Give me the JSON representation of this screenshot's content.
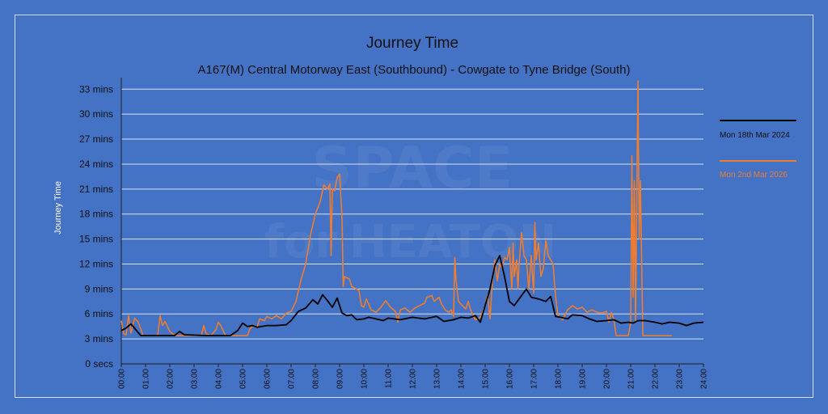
{
  "chart_data": {
    "type": "line",
    "title": "Journey Time",
    "subtitle": "A167(M) Central Motorway East (Southbound) - Cowgate to Tyne Bridge (South)",
    "ylabel": "Journey Time",
    "xlabel": "",
    "x_unit": "hours",
    "xlim": [
      0,
      24
    ],
    "ylim": [
      0,
      34
    ],
    "x_ticks": [
      "00:00",
      "01:00",
      "02:00",
      "03:00",
      "04:00",
      "05:00",
      "06:00",
      "07:00",
      "08:00",
      "09:00",
      "10:00",
      "11:00",
      "12:00",
      "13:00",
      "14:00",
      "15:00",
      "16:00",
      "17:00",
      "18:00",
      "19:00",
      "20:00",
      "21:00",
      "22:00",
      "23:00",
      "24:00"
    ],
    "y_ticks": [
      {
        "value": 0,
        "label": "0 secs"
      },
      {
        "value": 3,
        "label": "3 mins"
      },
      {
        "value": 6,
        "label": "6 mins"
      },
      {
        "value": 9,
        "label": "9 mins"
      },
      {
        "value": 12,
        "label": "12 mins"
      },
      {
        "value": 15,
        "label": "15 mins"
      },
      {
        "value": 18,
        "label": "18 mins"
      },
      {
        "value": 21,
        "label": "21 mins"
      },
      {
        "value": 24,
        "label": "24 mins"
      },
      {
        "value": 27,
        "label": "27 mins"
      },
      {
        "value": 30,
        "label": "30 mins"
      },
      {
        "value": 33,
        "label": "33 mins"
      }
    ],
    "grid": true,
    "legend_position": "right",
    "watermark": [
      "SPACE",
      "for",
      "HEATON"
    ],
    "series": [
      {
        "name": "Mon 18th Mar 2024",
        "color": "#000000",
        "points": [
          [
            0.0,
            4.0
          ],
          [
            0.2,
            4.3
          ],
          [
            0.4,
            4.8
          ],
          [
            0.6,
            4.1
          ],
          [
            0.8,
            3.4
          ],
          [
            1.5,
            3.4
          ],
          [
            2.2,
            3.4
          ],
          [
            2.4,
            3.9
          ],
          [
            2.6,
            3.5
          ],
          [
            3.5,
            3.4
          ],
          [
            4.5,
            3.4
          ],
          [
            4.8,
            4.0
          ],
          [
            5.0,
            4.9
          ],
          [
            5.2,
            4.5
          ],
          [
            5.4,
            4.6
          ],
          [
            5.6,
            4.4
          ],
          [
            6.0,
            4.6
          ],
          [
            6.4,
            4.6
          ],
          [
            6.8,
            4.7
          ],
          [
            7.0,
            5.2
          ],
          [
            7.3,
            6.3
          ],
          [
            7.6,
            6.7
          ],
          [
            7.9,
            7.7
          ],
          [
            8.1,
            7.2
          ],
          [
            8.3,
            8.3
          ],
          [
            8.5,
            7.6
          ],
          [
            8.7,
            6.8
          ],
          [
            8.9,
            7.9
          ],
          [
            9.1,
            6.1
          ],
          [
            9.3,
            5.8
          ],
          [
            9.5,
            5.9
          ],
          [
            9.7,
            5.3
          ],
          [
            10.0,
            5.4
          ],
          [
            10.2,
            5.6
          ],
          [
            10.5,
            5.4
          ],
          [
            10.8,
            5.2
          ],
          [
            11.0,
            5.5
          ],
          [
            11.5,
            5.3
          ],
          [
            12.0,
            5.6
          ],
          [
            12.5,
            5.4
          ],
          [
            13.0,
            5.7
          ],
          [
            13.3,
            5.1
          ],
          [
            13.7,
            5.3
          ],
          [
            14.0,
            5.6
          ],
          [
            14.3,
            5.5
          ],
          [
            14.6,
            5.8
          ],
          [
            14.8,
            5.0
          ],
          [
            15.0,
            7.0
          ],
          [
            15.2,
            9.0
          ],
          [
            15.4,
            11.8
          ],
          [
            15.6,
            13.0
          ],
          [
            15.8,
            10.5
          ],
          [
            16.0,
            7.5
          ],
          [
            16.2,
            7.0
          ],
          [
            16.4,
            7.8
          ],
          [
            16.6,
            8.6
          ],
          [
            16.7,
            9.0
          ],
          [
            16.9,
            8.0
          ],
          [
            17.2,
            7.8
          ],
          [
            17.5,
            7.5
          ],
          [
            17.7,
            8.1
          ],
          [
            17.9,
            5.7
          ],
          [
            18.1,
            5.6
          ],
          [
            18.4,
            5.4
          ],
          [
            18.6,
            5.9
          ],
          [
            19.0,
            5.8
          ],
          [
            19.3,
            5.4
          ],
          [
            19.6,
            5.1
          ],
          [
            20.0,
            5.2
          ],
          [
            20.3,
            5.3
          ],
          [
            20.6,
            4.9
          ],
          [
            20.9,
            5.0
          ],
          [
            21.1,
            4.9
          ],
          [
            21.3,
            5.2
          ],
          [
            21.6,
            5.2
          ],
          [
            22.0,
            5.0
          ],
          [
            22.3,
            4.8
          ],
          [
            22.6,
            5.0
          ],
          [
            23.0,
            4.9
          ],
          [
            23.3,
            4.6
          ],
          [
            23.6,
            4.9
          ],
          [
            24.0,
            5.0
          ]
        ]
      },
      {
        "name": "Mon 2nd Mar 2026",
        "color": "#ed7d31",
        "points": [
          [
            0.0,
            5.2
          ],
          [
            0.1,
            3.6
          ],
          [
            0.2,
            3.5
          ],
          [
            0.3,
            5.8
          ],
          [
            0.4,
            3.7
          ],
          [
            0.55,
            5.5
          ],
          [
            0.7,
            5.0
          ],
          [
            0.9,
            3.4
          ],
          [
            1.2,
            3.4
          ],
          [
            1.5,
            3.4
          ],
          [
            1.6,
            5.8
          ],
          [
            1.7,
            4.6
          ],
          [
            1.8,
            5.1
          ],
          [
            2.0,
            3.9
          ],
          [
            2.2,
            3.4
          ],
          [
            2.5,
            3.4
          ],
          [
            3.0,
            3.4
          ],
          [
            3.3,
            3.4
          ],
          [
            3.4,
            4.6
          ],
          [
            3.5,
            3.6
          ],
          [
            3.7,
            3.4
          ],
          [
            3.9,
            4.1
          ],
          [
            4.0,
            5.0
          ],
          [
            4.1,
            4.6
          ],
          [
            4.3,
            3.4
          ],
          [
            4.6,
            3.4
          ],
          [
            5.0,
            3.4
          ],
          [
            5.2,
            3.4
          ],
          [
            5.3,
            4.2
          ],
          [
            5.4,
            4.5
          ],
          [
            5.6,
            4.4
          ],
          [
            5.7,
            5.4
          ],
          [
            5.9,
            5.2
          ],
          [
            6.0,
            5.7
          ],
          [
            6.2,
            5.4
          ],
          [
            6.4,
            5.8
          ],
          [
            6.6,
            5.4
          ],
          [
            6.8,
            6.1
          ],
          [
            7.0,
            6.3
          ],
          [
            7.2,
            7.5
          ],
          [
            7.4,
            10.0
          ],
          [
            7.6,
            12.0
          ],
          [
            7.8,
            15.5
          ],
          [
            8.0,
            18.0
          ],
          [
            8.2,
            19.5
          ],
          [
            8.35,
            21.5
          ],
          [
            8.5,
            21.0
          ],
          [
            8.6,
            21.6
          ],
          [
            8.65,
            13.0
          ],
          [
            8.7,
            21.0
          ],
          [
            8.8,
            20.8
          ],
          [
            8.9,
            22.4
          ],
          [
            9.0,
            22.8
          ],
          [
            9.1,
            17.5
          ],
          [
            9.15,
            9.3
          ],
          [
            9.2,
            10.5
          ],
          [
            9.4,
            10.2
          ],
          [
            9.5,
            9.3
          ],
          [
            9.7,
            9.0
          ],
          [
            9.8,
            8.8
          ],
          [
            9.9,
            7.0
          ],
          [
            10.0,
            6.8
          ],
          [
            10.1,
            7.8
          ],
          [
            10.3,
            6.5
          ],
          [
            10.5,
            6.2
          ],
          [
            10.7,
            6.8
          ],
          [
            10.9,
            7.6
          ],
          [
            11.1,
            6.8
          ],
          [
            11.3,
            6.3
          ],
          [
            11.4,
            5.0
          ],
          [
            11.5,
            6.5
          ],
          [
            11.7,
            6.7
          ],
          [
            11.9,
            6.2
          ],
          [
            12.1,
            6.7
          ],
          [
            12.3,
            7.0
          ],
          [
            12.5,
            7.3
          ],
          [
            12.6,
            8.0
          ],
          [
            12.8,
            8.2
          ],
          [
            12.9,
            7.5
          ],
          [
            13.1,
            8.0
          ],
          [
            13.2,
            7.2
          ],
          [
            13.35,
            6.5
          ],
          [
            13.5,
            6.2
          ],
          [
            13.6,
            6.5
          ],
          [
            13.7,
            5.7
          ],
          [
            13.75,
            12.8
          ],
          [
            13.8,
            10.0
          ],
          [
            13.9,
            7.5
          ],
          [
            14.0,
            7.2
          ],
          [
            14.2,
            6.6
          ],
          [
            14.3,
            7.5
          ],
          [
            14.4,
            6.5
          ],
          [
            14.5,
            5.8
          ],
          [
            14.6,
            5.3
          ],
          [
            14.8,
            5.6
          ],
          [
            15.0,
            7.0
          ],
          [
            15.1,
            8.3
          ],
          [
            15.2,
            5.4
          ],
          [
            15.3,
            10.0
          ],
          [
            15.4,
            12.5
          ],
          [
            15.5,
            10.0
          ],
          [
            15.6,
            12.0
          ],
          [
            15.7,
            11.5
          ],
          [
            15.8,
            12.8
          ],
          [
            15.9,
            12.5
          ],
          [
            16.0,
            14.0
          ],
          [
            16.1,
            9.0
          ],
          [
            16.15,
            14.5
          ],
          [
            16.2,
            10.5
          ],
          [
            16.3,
            12.5
          ],
          [
            16.35,
            9.0
          ],
          [
            16.4,
            12.0
          ],
          [
            16.5,
            15.8
          ],
          [
            16.6,
            13.0
          ],
          [
            16.7,
            12.5
          ],
          [
            16.8,
            9.0
          ],
          [
            16.9,
            13.0
          ],
          [
            17.0,
            8.5
          ],
          [
            17.05,
            17.0
          ],
          [
            17.1,
            12.5
          ],
          [
            17.2,
            14.5
          ],
          [
            17.3,
            10.5
          ],
          [
            17.4,
            11.5
          ],
          [
            17.5,
            14.8
          ],
          [
            17.6,
            13.0
          ],
          [
            17.7,
            12.5
          ],
          [
            17.8,
            12.0
          ],
          [
            17.9,
            8.2
          ],
          [
            18.0,
            5.8
          ],
          [
            18.2,
            5.3
          ],
          [
            18.4,
            6.5
          ],
          [
            18.6,
            7.0
          ],
          [
            18.8,
            6.6
          ],
          [
            19.0,
            6.8
          ],
          [
            19.2,
            6.2
          ],
          [
            19.4,
            6.5
          ],
          [
            19.6,
            6.2
          ],
          [
            19.8,
            6.1
          ],
          [
            20.0,
            6.3
          ],
          [
            20.1,
            5.0
          ],
          [
            20.2,
            6.2
          ],
          [
            20.3,
            5.4
          ],
          [
            20.4,
            3.4
          ],
          [
            20.6,
            3.4
          ],
          [
            20.9,
            3.4
          ],
          [
            21.0,
            4.9
          ],
          [
            21.05,
            25.0
          ],
          [
            21.1,
            8.0
          ],
          [
            21.15,
            22.0
          ],
          [
            21.2,
            5.0
          ],
          [
            21.3,
            34.0
          ],
          [
            21.35,
            15.0
          ],
          [
            21.4,
            22.0
          ],
          [
            21.5,
            3.4
          ],
          [
            21.8,
            3.4
          ],
          [
            22.2,
            3.4
          ],
          [
            22.7,
            3.4
          ]
        ]
      }
    ]
  }
}
